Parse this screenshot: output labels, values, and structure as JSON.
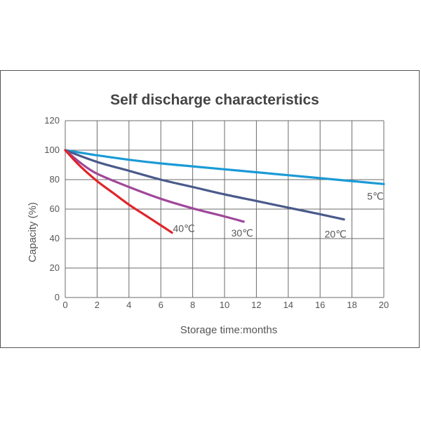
{
  "chart_data": {
    "type": "line",
    "title": "Self discharge characteristics",
    "xlabel": "Storage time:months",
    "ylabel": "Capacity (%)",
    "xlim": [
      0,
      20
    ],
    "ylim": [
      0,
      120
    ],
    "x_ticks": [
      0,
      2,
      4,
      6,
      8,
      10,
      12,
      14,
      16,
      18,
      20
    ],
    "y_ticks": [
      0,
      20,
      40,
      60,
      80,
      100,
      120
    ],
    "grid": true,
    "series": [
      {
        "name": "5℃",
        "color": "#1a9ad6",
        "x": [
          0,
          2,
          4,
          6,
          8,
          10,
          12,
          14,
          16,
          18,
          20
        ],
        "y": [
          100,
          96.5,
          93.5,
          91,
          89,
          87,
          85,
          83,
          81,
          79,
          77
        ]
      },
      {
        "name": "20℃",
        "color": "#4a5a8a",
        "x": [
          0,
          2,
          4,
          6,
          8,
          10,
          12,
          14,
          16,
          17.5
        ],
        "y": [
          100,
          92,
          86,
          80,
          75,
          70,
          65.5,
          61,
          56.5,
          53
        ]
      },
      {
        "name": "30℃",
        "color": "#a0479a",
        "x": [
          0,
          1,
          2,
          4,
          6,
          8,
          10,
          11.2
        ],
        "y": [
          100,
          91,
          84,
          75,
          67,
          60.5,
          55,
          51.5
        ]
      },
      {
        "name": "40℃",
        "color": "#e0242b",
        "x": [
          0,
          0.5,
          1,
          2,
          3,
          4,
          5,
          6,
          6.7
        ],
        "y": [
          100,
          94,
          88.5,
          79,
          71,
          63,
          56,
          49,
          44
        ]
      }
    ]
  }
}
